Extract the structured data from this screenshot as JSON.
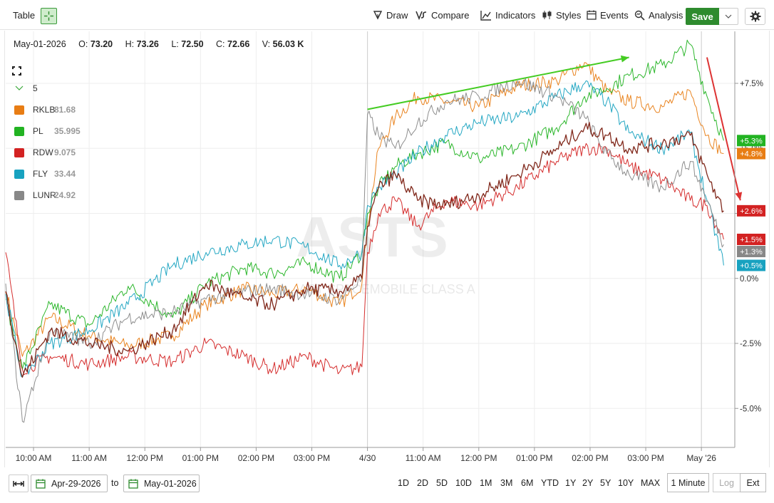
{
  "toolbar": {
    "table_label": "Table",
    "draw_label": "Draw",
    "compare_label": "Compare",
    "indicators_label": "Indicators",
    "styles_label": "Styles",
    "events_label": "Events",
    "analysis_label": "Analysis",
    "save_label": "Save"
  },
  "ohlc": {
    "date": "May-01-2026",
    "open_label": "O:",
    "open": "73.20",
    "high_label": "H:",
    "high": "73.26",
    "low_label": "L:",
    "low": "72.50",
    "close_label": "C:",
    "close": "72.66",
    "volume_label": "V:",
    "volume": "56.03 K"
  },
  "legend": {
    "header": "5",
    "items": [
      {
        "symbol": "RKLB",
        "value": "81.68",
        "color": "#e87d14"
      },
      {
        "symbol": "PL",
        "value": "35.995",
        "color": "#22b322"
      },
      {
        "symbol": "RDW",
        "value": "9.075",
        "color": "#d32222"
      },
      {
        "symbol": "FLY",
        "value": "33.44",
        "color": "#18a2c0"
      },
      {
        "symbol": "LUNR",
        "value": "24.92",
        "color": "#888888"
      }
    ]
  },
  "watermark": {
    "ticker": "ASTS",
    "name": "AST SPACEMOBILE CLASS A"
  },
  "chart_data": {
    "type": "line",
    "title": "",
    "y_unit": "%",
    "y_tick_labels": [
      "+7.5%",
      "+5.0%",
      "+2.5%",
      "0.0%",
      "-2.5%",
      "-5.0%"
    ],
    "y_ticks": [
      7.5,
      5.0,
      2.5,
      0.0,
      -2.5,
      -5.0
    ],
    "ylim": [
      -6.5,
      9.5
    ],
    "x_tick_labels": [
      "10:00 AM",
      "11:00 AM",
      "12:00 PM",
      "01:00 PM",
      "02:00 PM",
      "03:00 PM",
      "4/30",
      "11:00 AM",
      "12:00 PM",
      "01:00 PM",
      "02:00 PM",
      "03:00 PM",
      "May '26"
    ],
    "x_ticks": [
      0.5,
      1.5,
      2.5,
      3.5,
      4.5,
      5.5,
      6.5,
      7.5,
      8.5,
      9.5,
      10.5,
      11.5,
      12.5
    ],
    "xlim": [
      0,
      13.1
    ],
    "grid": true,
    "series": [
      {
        "name": "RKLB",
        "color": "#e87d14",
        "x": [
          0,
          0.3,
          0.8,
          1.5,
          2.2,
          3.0,
          3.6,
          4.3,
          4.8,
          5.4,
          6.0,
          6.4,
          6.5,
          6.7,
          7.0,
          7.4,
          7.9,
          8.5,
          9.2,
          9.9,
          10.4,
          10.8,
          11.2,
          11.8,
          12.3,
          12.6,
          12.9
        ],
        "values": [
          -0.5,
          -3.0,
          -1.5,
          -2.2,
          -2.6,
          -2.2,
          -1.0,
          -0.4,
          -0.6,
          -0.4,
          -1.0,
          -0.2,
          2.0,
          5.0,
          6.2,
          7.0,
          6.8,
          6.6,
          7.4,
          7.6,
          8.3,
          7.2,
          6.8,
          6.6,
          7.2,
          5.5,
          4.8
        ]
      },
      {
        "name": "PL",
        "color": "#22b322",
        "x": [
          0,
          0.3,
          0.8,
          1.5,
          2.2,
          3.0,
          3.6,
          4.3,
          4.8,
          5.4,
          6.0,
          6.4,
          6.5,
          6.7,
          7.0,
          7.4,
          7.9,
          8.5,
          9.2,
          9.9,
          10.4,
          10.8,
          11.2,
          11.8,
          12.3,
          12.6,
          12.9
        ],
        "values": [
          -0.8,
          -3.5,
          -1.0,
          -1.8,
          -0.3,
          -1.5,
          -0.2,
          0.4,
          0.2,
          0.6,
          0.0,
          1.0,
          2.5,
          3.5,
          4.3,
          4.8,
          5.2,
          4.6,
          5.0,
          5.8,
          7.0,
          7.3,
          7.8,
          8.2,
          9.0,
          7.0,
          5.3
        ]
      },
      {
        "name": "RDW",
        "color": "#d32222",
        "x": [
          0,
          0.3,
          0.8,
          1.5,
          2.2,
          3.0,
          3.6,
          4.3,
          4.8,
          5.4,
          6.0,
          6.4,
          6.5,
          6.7,
          7.0,
          7.4,
          7.9,
          8.5,
          9.2,
          9.9,
          10.4,
          10.8,
          11.2,
          11.8,
          12.3,
          12.6,
          12.9
        ],
        "values": [
          1.0,
          -3.5,
          -3.0,
          -3.3,
          -3.0,
          -3.2,
          -2.5,
          -3.0,
          -3.5,
          -3.0,
          -3.6,
          -3.4,
          1.0,
          2.5,
          3.0,
          2.0,
          3.0,
          2.8,
          3.5,
          4.5,
          5.0,
          5.0,
          4.3,
          3.8,
          3.0,
          2.8,
          1.5
        ]
      },
      {
        "name": "FLY",
        "color": "#18a2c0",
        "x": [
          0,
          0.3,
          0.8,
          1.5,
          2.2,
          3.0,
          3.6,
          4.3,
          4.8,
          5.4,
          6.0,
          6.4,
          6.5,
          6.7,
          7.0,
          7.4,
          7.9,
          8.5,
          9.2,
          9.9,
          10.4,
          10.8,
          11.2,
          11.8,
          12.3,
          12.6,
          12.9
        ],
        "values": [
          -0.6,
          -3.8,
          -2.5,
          -2.0,
          -1.0,
          0.5,
          1.0,
          1.3,
          1.5,
          1.2,
          0.5,
          1.0,
          2.8,
          3.5,
          4.0,
          4.8,
          5.5,
          6.0,
          6.2,
          7.0,
          7.5,
          6.8,
          5.6,
          5.0,
          5.6,
          3.0,
          0.5
        ]
      },
      {
        "name": "LUNR",
        "color": "#888888",
        "x": [
          0,
          0.3,
          0.8,
          1.5,
          2.2,
          3.0,
          3.6,
          4.3,
          4.8,
          5.4,
          6.0,
          6.4,
          6.5,
          6.7,
          7.0,
          7.4,
          7.9,
          8.5,
          9.2,
          9.9,
          10.4,
          10.8,
          11.2,
          11.8,
          12.3,
          12.6,
          12.9
        ],
        "values": [
          -0.2,
          -5.5,
          -2.0,
          -2.5,
          -1.5,
          -1.3,
          -0.8,
          -0.5,
          -0.4,
          -0.6,
          -0.8,
          0.0,
          6.3,
          5.5,
          5.0,
          6.0,
          6.8,
          7.0,
          7.6,
          7.0,
          6.2,
          4.8,
          4.0,
          3.5,
          4.5,
          3.0,
          1.3
        ]
      },
      {
        "name": "ASTS",
        "color": "#7a1e10",
        "x": [
          0,
          0.3,
          0.8,
          1.5,
          2.2,
          3.0,
          3.6,
          4.3,
          4.8,
          5.4,
          6.0,
          6.4,
          6.5,
          6.7,
          7.0,
          7.4,
          7.9,
          8.5,
          9.2,
          9.9,
          10.4,
          10.8,
          11.2,
          11.8,
          12.3,
          12.6,
          12.9
        ],
        "values": [
          -0.5,
          -3.8,
          -2.0,
          -2.5,
          -2.8,
          -2.0,
          -0.2,
          -0.8,
          -1.0,
          -0.4,
          -0.5,
          0.0,
          2.0,
          3.5,
          4.0,
          3.0,
          2.8,
          3.2,
          4.0,
          5.0,
          5.8,
          5.5,
          5.0,
          5.2,
          5.5,
          4.0,
          2.6
        ]
      }
    ],
    "value_badges": [
      {
        "label": "+5.3%",
        "value": 5.3,
        "color": "#22b322"
      },
      {
        "label": "+4.8%",
        "value": 4.8,
        "color": "#e87d14"
      },
      {
        "label": "+2.6%",
        "value": 2.6,
        "color": "#d32222"
      },
      {
        "label": "+1.5%",
        "value": 1.5,
        "color": "#d32222"
      },
      {
        "label": "+1.3%",
        "value": 1.3,
        "color": "#888888"
      },
      {
        "label": "+0.5%",
        "value": 0.5,
        "color": "#18a2c0"
      }
    ],
    "drawings": [
      {
        "type": "arrow",
        "color": "#44cc22",
        "from": [
          6.5,
          6.5
        ],
        "to": [
          11.2,
          8.5
        ]
      },
      {
        "type": "arrow",
        "color": "#dd3333",
        "from": [
          12.6,
          8.5
        ],
        "to": [
          13.2,
          3.0
        ]
      }
    ]
  },
  "bottom": {
    "from_date": "Apr-29-2026",
    "to_label": "to",
    "to_date": "May-01-2026",
    "periods": [
      "1D",
      "2D",
      "5D",
      "10D",
      "1M",
      "3M",
      "6M",
      "YTD",
      "1Y",
      "2Y",
      "5Y",
      "10Y",
      "MAX"
    ],
    "interval": "1 Minute",
    "log_label": "Log",
    "ext_label": "Ext"
  }
}
